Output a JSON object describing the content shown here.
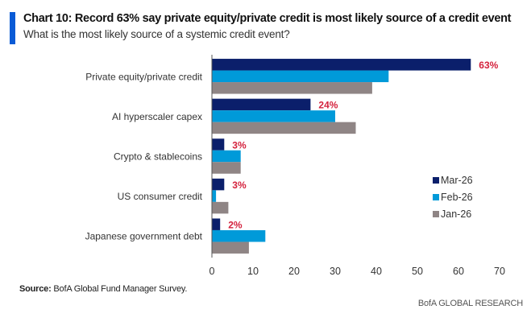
{
  "header": {
    "title": "Chart 10: Record 63% say private equity/private credit is most likely source of a credit event",
    "subtitle": "What is the most likely source of a systemic credit event?"
  },
  "footer": {
    "source_label": "Source:",
    "source_text": " BofA Global Fund Manager Survey.",
    "brand": "BofA GLOBAL RESEARCH"
  },
  "colors": {
    "accent": "#0a5bd6",
    "mar": "#0b1f6b",
    "feb": "#009ad9",
    "jan": "#8f8585",
    "data_label": "#d4223d"
  },
  "chart_data": {
    "type": "bar",
    "orientation": "horizontal",
    "title": "Chart 10: Record 63% say private equity/private credit is most likely source of a credit event",
    "subtitle": "What is the most likely source of a systemic credit event?",
    "xlabel": "",
    "ylabel": "",
    "xlim": [
      0,
      70
    ],
    "xticks": [
      0,
      10,
      20,
      30,
      40,
      50,
      60,
      70
    ],
    "grid": false,
    "legend_position": "right",
    "categories": [
      "Private equity/private credit",
      "AI hyperscaler capex",
      "Crypto & stablecoins",
      "US consumer credit",
      "Japanese government debt"
    ],
    "series": [
      {
        "name": "Mar-26",
        "color": "#0b1f6b",
        "values": [
          63,
          24,
          3,
          3,
          2
        ],
        "data_labels": [
          "63%",
          "24%",
          "3%",
          "3%",
          "2%"
        ]
      },
      {
        "name": "Feb-26",
        "color": "#009ad9",
        "values": [
          43,
          30,
          7,
          1,
          13
        ]
      },
      {
        "name": "Jan-26",
        "color": "#8f8585",
        "values": [
          39,
          35,
          7,
          4,
          9
        ]
      }
    ]
  }
}
